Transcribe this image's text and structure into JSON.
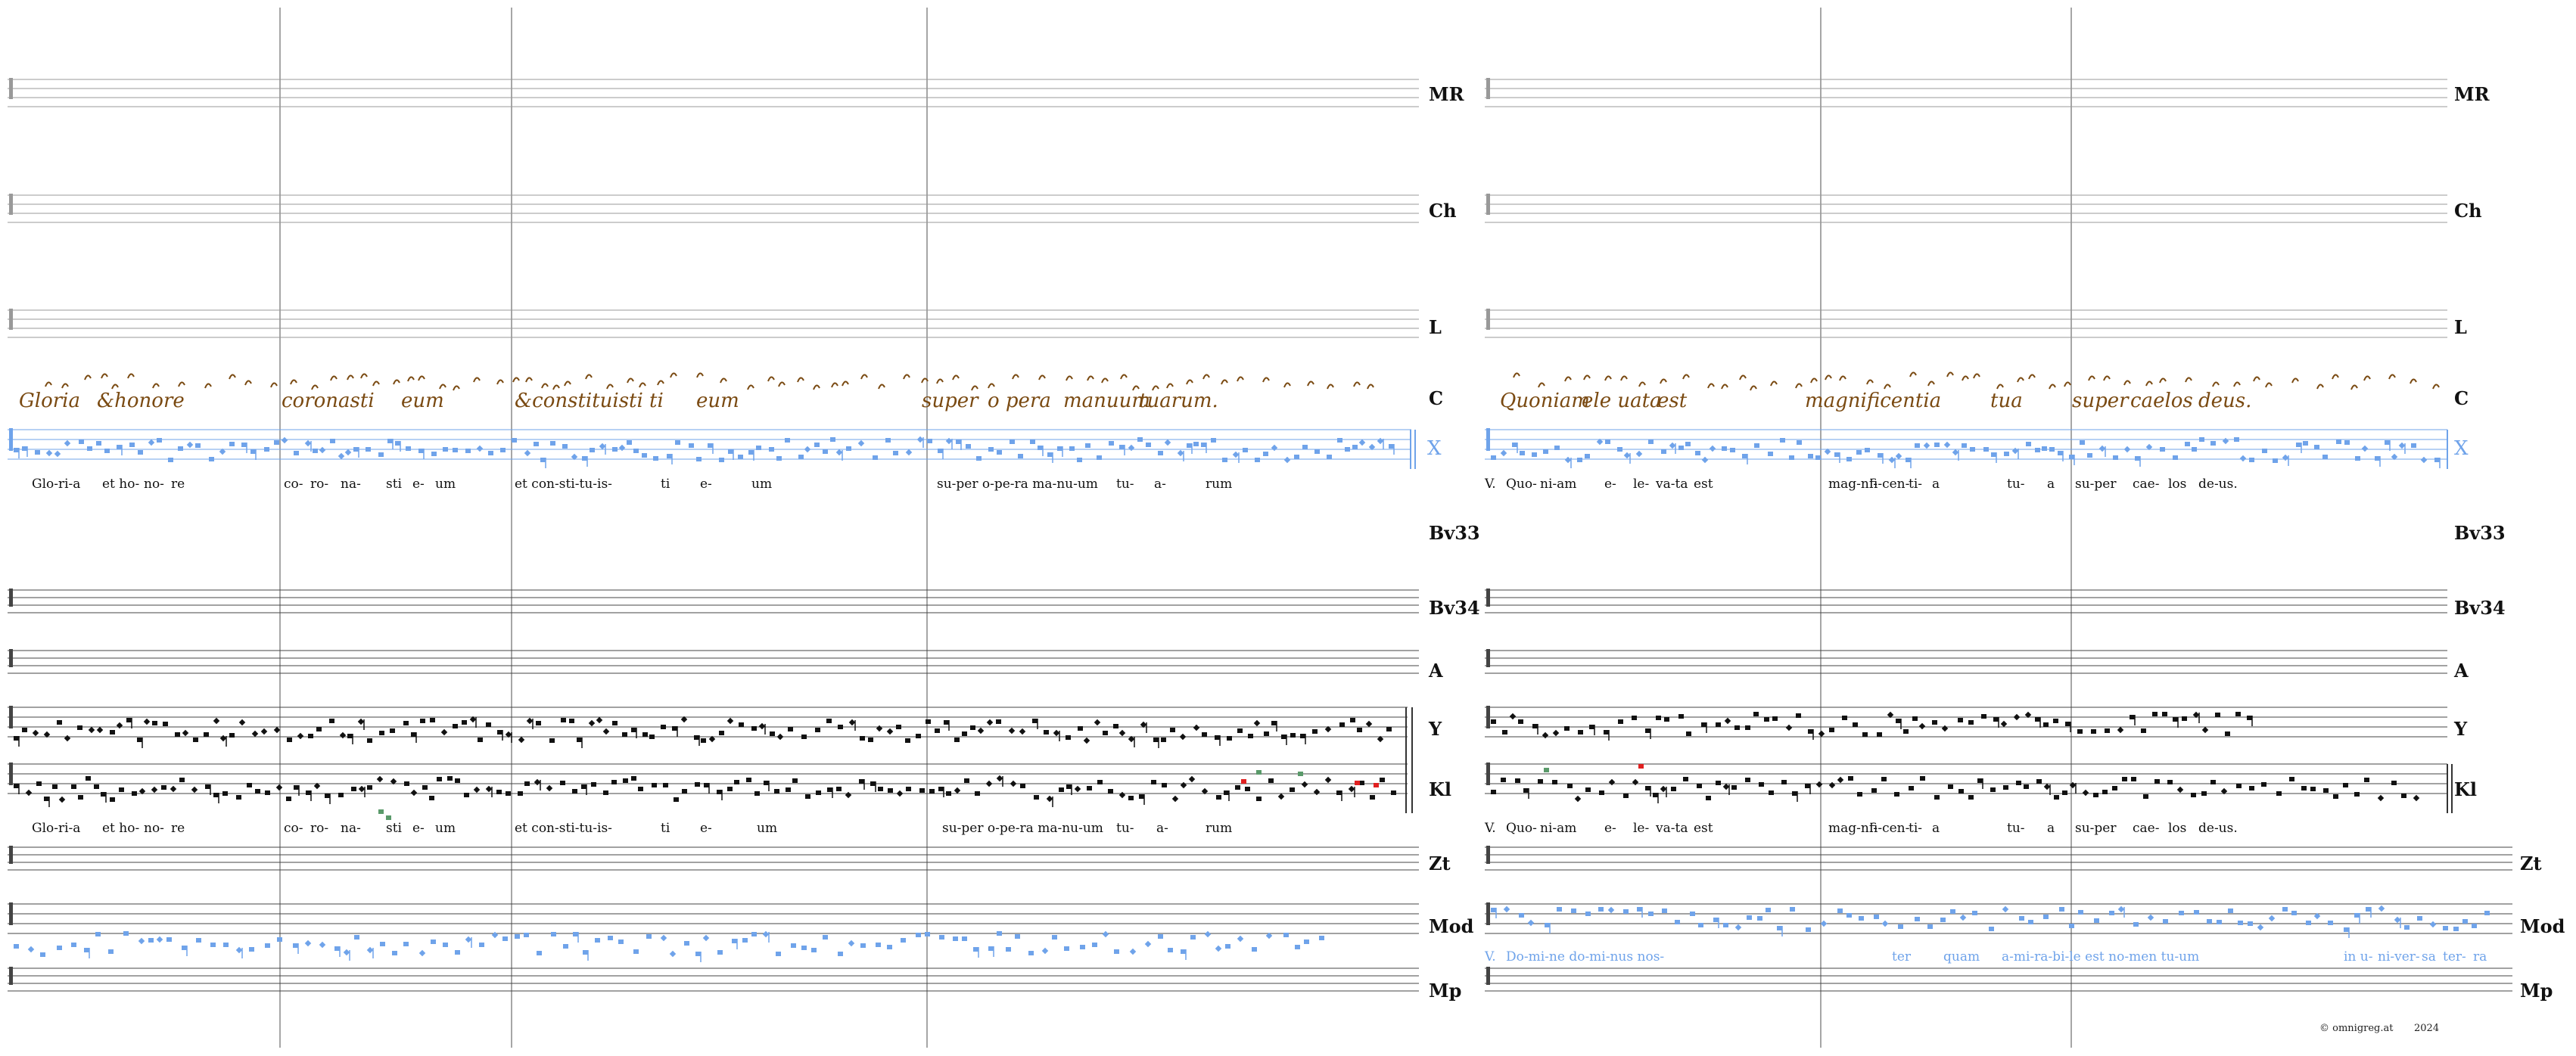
{
  "score": {
    "staff_labels": [
      "MR",
      "Ch",
      "L",
      "C",
      "X",
      "Bv33",
      "Bv34",
      "A",
      "Y",
      "Kl",
      "Zt",
      "Mod",
      "Mp"
    ],
    "left": {
      "manuscript_words": [
        "Gloria",
        "&honore",
        "coronasti",
        "eum",
        "&constituisti",
        "ti",
        "eum",
        "super",
        "o pera",
        "manuum",
        "tuarum."
      ],
      "lyrics": [
        "Glo-ri-a",
        "et ho-",
        "no-",
        "re",
        "co-",
        "ro-",
        "na-",
        "sti",
        "e-",
        "um",
        "et con-sti-tu-is-",
        "ti",
        "e-",
        "um",
        "su-per o-pe-ra ma-nu-um",
        "tu-",
        "a-",
        "rum"
      ]
    },
    "right": {
      "manuscript_words": [
        "Quoniam",
        "ele uata",
        "est",
        "magnificentia",
        "tua",
        "super",
        "caelos",
        "deus."
      ],
      "lyrics": [
        "V.",
        "Quo-",
        "ni-am",
        "e-",
        "le-",
        "va-ta",
        "est",
        "mag-ni-",
        "fi-cen-",
        "ti-",
        "a",
        "tu-",
        "a",
        "su-per",
        "cae-",
        "los",
        "de-us."
      ],
      "mod_lyrics": [
        "V.",
        "Do-mi-ne do-mi-nus nos-",
        "ter",
        "quam",
        "a-mi-ra-bi-le est no-men tu-um",
        "in u-",
        "ni-ver-",
        "sa",
        "ter-",
        "ra"
      ]
    },
    "footer": {
      "copyright": "© omnigreg.at",
      "year": "2024"
    },
    "colors": {
      "accent": "#6fa3ea",
      "ink": "#111111",
      "manuscript": "#7a4a12",
      "red": "#e02020",
      "green": "#5a9a6a"
    }
  }
}
